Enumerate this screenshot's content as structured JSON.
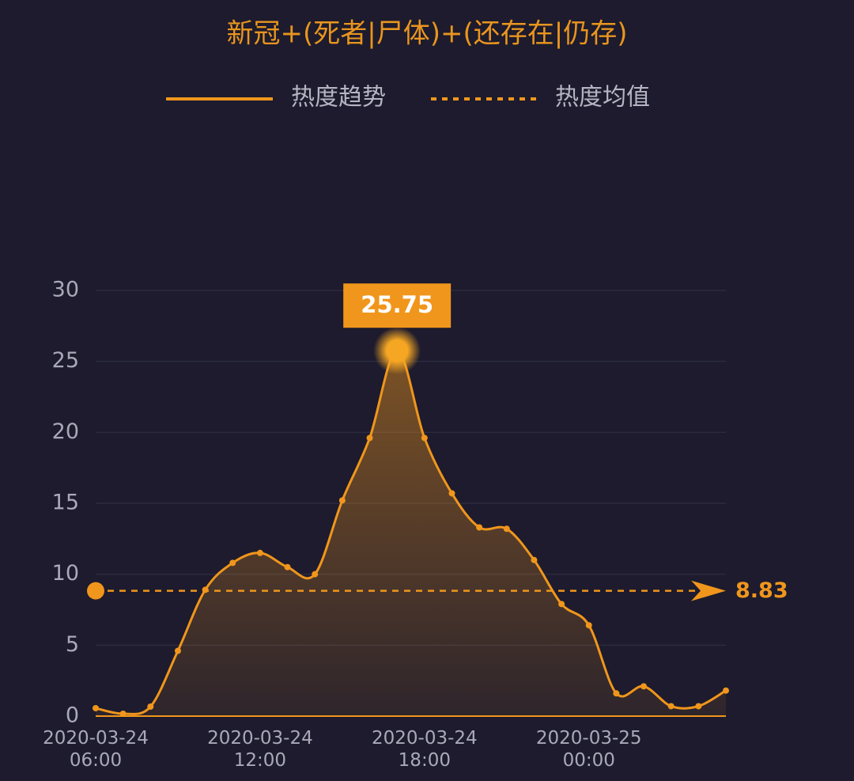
{
  "chart_data": {
    "type": "line",
    "title": "新冠+(死者|尸体)+(还存在|仍存)",
    "x": [
      "2020-03-24 06:00",
      "2020-03-24 07:00",
      "2020-03-24 08:00",
      "2020-03-24 09:00",
      "2020-03-24 10:00",
      "2020-03-24 11:00",
      "2020-03-24 12:00",
      "2020-03-24 13:00",
      "2020-03-24 14:00",
      "2020-03-24 15:00",
      "2020-03-24 16:00",
      "2020-03-24 17:00",
      "2020-03-24 18:00",
      "2020-03-24 19:00",
      "2020-03-24 20:00",
      "2020-03-24 21:00",
      "2020-03-24 22:00",
      "2020-03-24 23:00",
      "2020-03-25 00:00",
      "2020-03-25 01:00",
      "2020-03-25 02:00",
      "2020-03-25 03:00",
      "2020-03-25 04:00",
      "2020-03-25 05:00"
    ],
    "series": [
      {
        "name": "热度趋势",
        "color": "#f0961c",
        "values": [
          0.56,
          0.17,
          0.67,
          4.6,
          8.9,
          10.8,
          11.5,
          10.5,
          10.0,
          15.2,
          19.6,
          25.75,
          19.6,
          15.7,
          13.3,
          13.2,
          11.0,
          7.9,
          6.4,
          1.6,
          2.1,
          0.7,
          0.7,
          1.8
        ]
      }
    ],
    "mean": {
      "name": "热度均值",
      "value": 8.83
    },
    "ylim": [
      0,
      30
    ],
    "yticks": [
      0,
      5,
      10,
      15,
      20,
      25,
      30
    ],
    "xticks": [
      "2020-03-24 06:00",
      "2020-03-24 12:00",
      "2020-03-24 18:00",
      "2020-03-25 00:00"
    ],
    "grid": true
  }
}
